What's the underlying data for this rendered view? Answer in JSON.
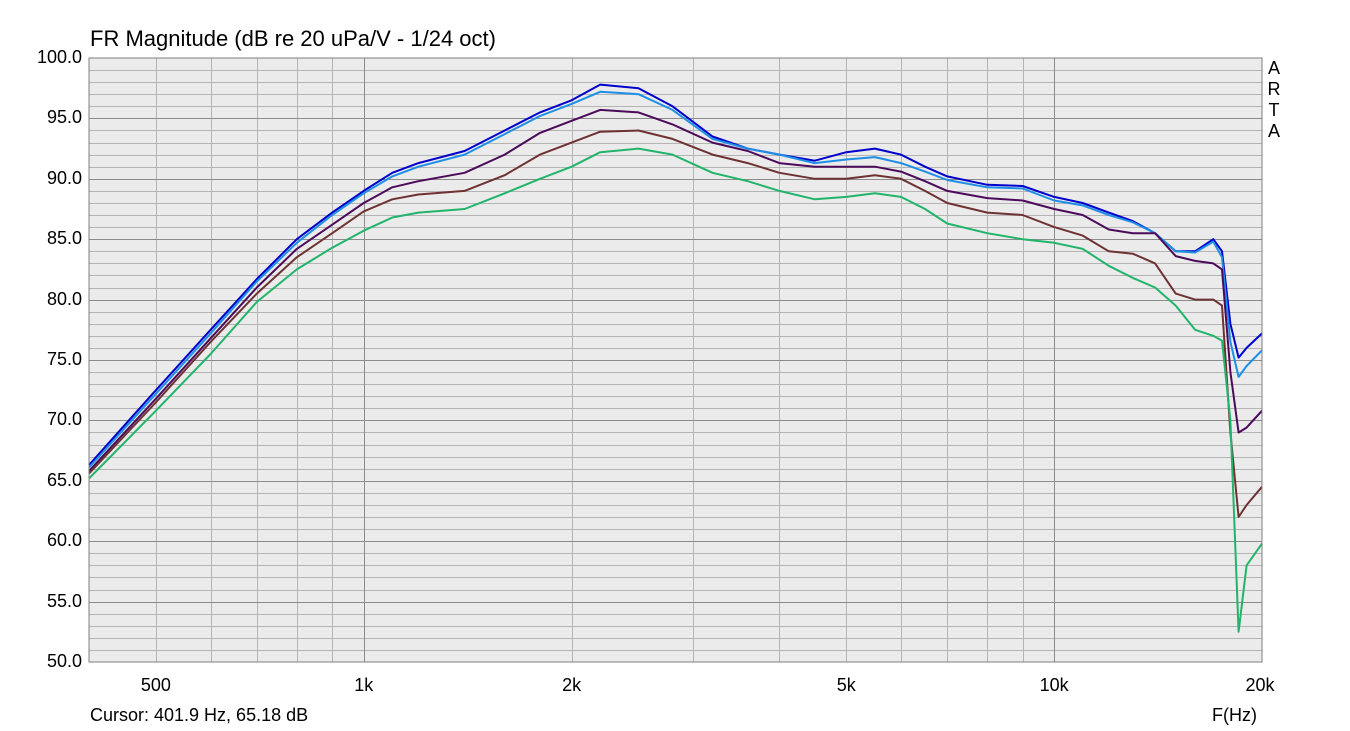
{
  "title": "FR Magnitude (dB re 20 uPa/V - 1/24 oct)",
  "cursor_text": "Cursor: 401.9 Hz, 65.18 dB",
  "x_unit_label": "F(Hz)",
  "brand_letters": [
    "A",
    "R",
    "T",
    "A"
  ],
  "colors": {
    "plot_background": "#ebebeb",
    "grid_minor": "#b4b4b4",
    "grid_major": "#8c8c8c",
    "frame": "#7f7f7f"
  },
  "chart_data": {
    "type": "line",
    "title": "FR Magnitude (dB re 20 uPa/V - 1/24 oct)",
    "xlabel": "F(Hz)",
    "ylabel": "",
    "x_scale": "log",
    "xlim": [
      400,
      20000
    ],
    "ylim": [
      50,
      100
    ],
    "grid": true,
    "y_ticks": [
      "100.0",
      "95.0",
      "90.0",
      "85.0",
      "80.0",
      "75.0",
      "70.0",
      "65.0",
      "60.0",
      "55.0",
      "50.0"
    ],
    "x_ticks": [
      {
        "value": 500,
        "label": "500"
      },
      {
        "value": 1000,
        "label": "1k"
      },
      {
        "value": 2000,
        "label": "2k"
      },
      {
        "value": 5000,
        "label": "5k"
      },
      {
        "value": 10000,
        "label": "10k"
      },
      {
        "value": 20000,
        "label": "20k"
      }
    ],
    "x": [
      400,
      500,
      600,
      700,
      800,
      900,
      1000,
      1100,
      1200,
      1400,
      1600,
      1800,
      2000,
      2200,
      2500,
      2800,
      3200,
      3600,
      4000,
      4500,
      5000,
      5500,
      6000,
      6500,
      7000,
      8000,
      9000,
      10000,
      11000,
      12000,
      13000,
      14000,
      15000,
      16000,
      17000,
      17500,
      18000,
      18500,
      19000,
      20000
    ],
    "series": [
      {
        "color": "#0000cc",
        "values": [
          66.3,
          72.5,
          77.5,
          81.7,
          85.0,
          87.2,
          89.0,
          90.5,
          91.3,
          92.3,
          94.0,
          95.5,
          96.5,
          97.8,
          97.5,
          96.0,
          93.5,
          92.5,
          92.0,
          91.5,
          92.2,
          92.5,
          92.0,
          91.0,
          90.2,
          89.5,
          89.4,
          88.5,
          88.0,
          87.2,
          86.5,
          85.5,
          84.0,
          84.0,
          85.0,
          84.0,
          78.0,
          75.2,
          76.0,
          77.2
        ]
      },
      {
        "color": "#1e8fe6",
        "values": [
          66.1,
          72.2,
          77.2,
          81.5,
          84.7,
          87.0,
          88.8,
          90.2,
          91.0,
          92.0,
          93.7,
          95.2,
          96.2,
          97.2,
          97.0,
          95.7,
          93.3,
          92.5,
          92.0,
          91.3,
          91.6,
          91.8,
          91.3,
          90.6,
          89.9,
          89.3,
          89.2,
          88.2,
          87.8,
          87.0,
          86.4,
          85.5,
          84.0,
          83.9,
          84.8,
          83.5,
          76.5,
          73.6,
          74.5,
          75.8
        ]
      },
      {
        "color": "#4b0a5a",
        "values": [
          65.8,
          71.8,
          76.8,
          81.0,
          84.2,
          86.2,
          88.0,
          89.3,
          89.8,
          90.5,
          92.0,
          93.8,
          94.8,
          95.7,
          95.5,
          94.5,
          93.0,
          92.3,
          91.3,
          91.0,
          91.0,
          91.0,
          90.6,
          89.8,
          89.0,
          88.4,
          88.2,
          87.5,
          87.0,
          85.8,
          85.5,
          85.5,
          83.6,
          83.2,
          83.0,
          82.5,
          74.0,
          69.0,
          69.4,
          70.8
        ]
      },
      {
        "color": "#6e3232",
        "values": [
          65.6,
          71.5,
          76.5,
          80.5,
          83.5,
          85.5,
          87.3,
          88.3,
          88.7,
          89.0,
          90.3,
          92.0,
          93.0,
          93.9,
          94.0,
          93.3,
          92.0,
          91.3,
          90.5,
          90.0,
          90.0,
          90.3,
          90.0,
          89.0,
          88.0,
          87.2,
          87.0,
          86.0,
          85.3,
          84.0,
          83.8,
          83.0,
          80.5,
          80.0,
          80.0,
          79.5,
          69.0,
          62.0,
          63.0,
          64.5
        ]
      },
      {
        "color": "#21b46a",
        "values": [
          65.2,
          70.8,
          75.5,
          79.8,
          82.5,
          84.3,
          85.7,
          86.8,
          87.2,
          87.5,
          88.8,
          90.0,
          91.0,
          92.2,
          92.5,
          92.0,
          90.5,
          89.8,
          89.0,
          88.3,
          88.5,
          88.8,
          88.5,
          87.5,
          86.3,
          85.5,
          85.0,
          84.7,
          84.2,
          82.8,
          81.8,
          81.0,
          79.5,
          77.5,
          77.0,
          76.6,
          70.0,
          52.5,
          58.0,
          59.8
        ]
      }
    ]
  }
}
